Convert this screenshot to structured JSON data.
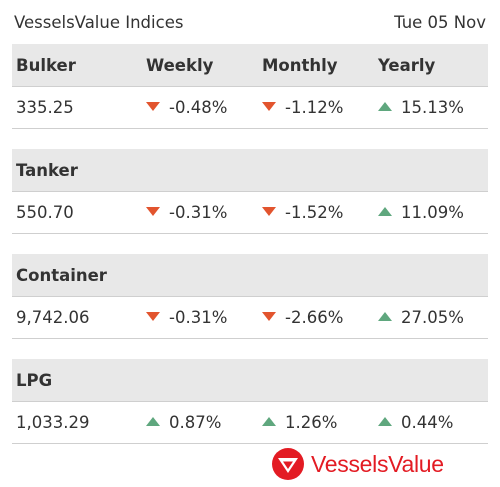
{
  "header": {
    "title": "VesselsValue Indices",
    "date": "Tue 05 Nov"
  },
  "columns": {
    "weekly": "Weekly",
    "monthly": "Monthly",
    "yearly": "Yearly"
  },
  "indices": [
    {
      "name": "Bulker",
      "value": "335.25",
      "weekly": {
        "text": "-0.48%",
        "direction": "down"
      },
      "monthly": {
        "text": "-1.12%",
        "direction": "down"
      },
      "yearly": {
        "text": "15.13%",
        "direction": "up"
      }
    },
    {
      "name": "Tanker",
      "value": "550.70",
      "weekly": {
        "text": "-0.31%",
        "direction": "down"
      },
      "monthly": {
        "text": "-1.52%",
        "direction": "down"
      },
      "yearly": {
        "text": "11.09%",
        "direction": "up"
      }
    },
    {
      "name": "Container",
      "value": "9,742.06",
      "weekly": {
        "text": "-0.31%",
        "direction": "down"
      },
      "monthly": {
        "text": "-2.66%",
        "direction": "down"
      },
      "yearly": {
        "text": "27.05%",
        "direction": "up"
      }
    },
    {
      "name": "LPG",
      "value": "1,033.29",
      "weekly": {
        "text": "0.87%",
        "direction": "up"
      },
      "monthly": {
        "text": "1.26%",
        "direction": "up"
      },
      "yearly": {
        "text": "0.44%",
        "direction": "up"
      }
    }
  ],
  "logo": {
    "text": "VesselsValue",
    "color": "#e31b23"
  },
  "colors": {
    "down": "#e2542e",
    "up": "#5fa77e",
    "header_bg": "#e8e8e8"
  }
}
